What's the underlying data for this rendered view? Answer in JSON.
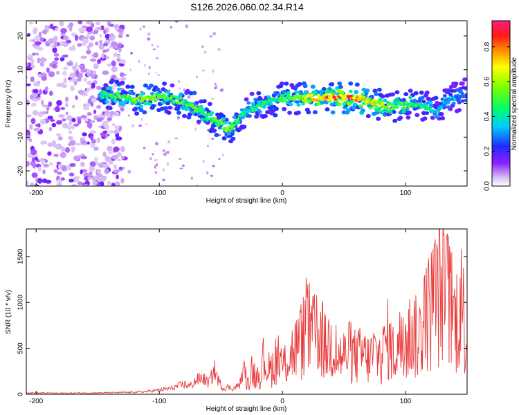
{
  "title": "S126.2026.060.02.34.R14",
  "chart_data": [
    {
      "type": "heatmap",
      "xlabel": "Height of straight line (km)",
      "ylabel": "Frequency (Hz)",
      "xlim": [
        -208,
        150
      ],
      "ylim": [
        -24.5,
        24.5
      ],
      "xticks": [
        -200,
        -100,
        0,
        100
      ],
      "yticks": [
        -20,
        -10,
        0,
        10,
        20
      ],
      "ridge": {
        "x": [
          -148,
          -140,
          -130,
          -120,
          -110,
          -100,
          -90,
          -80,
          -70,
          -60,
          -50,
          -45,
          -40,
          -30,
          -20,
          -10,
          0,
          10,
          20,
          30,
          40,
          50,
          60,
          70,
          80,
          90,
          100,
          110,
          120,
          125,
          130,
          140,
          150
        ],
        "y": [
          2.5,
          2.5,
          1.8,
          1.2,
          1.5,
          2.0,
          1.5,
          0.5,
          -1.5,
          -4.0,
          -6.0,
          -7.5,
          -6.5,
          -2.5,
          -0.5,
          0.5,
          1.5,
          1.5,
          1.5,
          1.8,
          1.8,
          1.8,
          1.5,
          0.5,
          -0.5,
          -1.0,
          -0.5,
          0.0,
          -1.0,
          -3.0,
          0.0,
          2.0,
          3.0
        ],
        "peak_amplitude": [
          0.45,
          0.55,
          0.6,
          0.65,
          0.7,
          0.6,
          0.55,
          0.55,
          0.6,
          0.55,
          0.6,
          0.65,
          0.55,
          0.45,
          0.5,
          0.5,
          0.55,
          0.6,
          0.7,
          0.85,
          0.9,
          0.9,
          0.9,
          0.8,
          0.7,
          0.6,
          0.55,
          0.5,
          0.45,
          0.4,
          0.4,
          0.35,
          0.3
        ]
      },
      "colorbar": {
        "label": "Normalized spectral amplitude",
        "ticks": [
          "0.0",
          "0.2",
          "0.4",
          "0.6",
          "0.8"
        ],
        "range": [
          0,
          0.95
        ]
      }
    },
    {
      "type": "line",
      "xlabel": "Height of straight line (km)",
      "ylabel": "SNR (10 * v/v)",
      "xlim": [
        -208,
        150
      ],
      "ylim": [
        0,
        1800
      ],
      "xticks": [
        -200,
        -100,
        0,
        100
      ],
      "yticks": [
        0,
        500,
        1000,
        1500
      ],
      "series": [
        {
          "name": "SNR",
          "color": "#e83a3a",
          "x": [
            -208,
            -180,
            -150,
            -125,
            -110,
            -100,
            -90,
            -80,
            -75,
            -70,
            -65,
            -60,
            -55,
            -52,
            -48,
            -45,
            -40,
            -35,
            -30,
            -28,
            -25,
            -20,
            -15,
            -10,
            -5,
            0,
            5,
            10,
            15,
            20,
            25,
            30,
            35,
            40,
            45,
            50,
            55,
            60,
            65,
            70,
            75,
            80,
            85,
            90,
            95,
            100,
            105,
            110,
            115,
            120,
            125,
            130,
            135,
            140,
            145,
            150
          ],
          "values": [
            15,
            12,
            15,
            20,
            30,
            45,
            65,
            110,
            90,
            150,
            180,
            120,
            260,
            150,
            60,
            80,
            60,
            100,
            320,
            200,
            430,
            250,
            560,
            380,
            620,
            450,
            620,
            760,
            850,
            1150,
            950,
            1060,
            760,
            880,
            620,
            640,
            700,
            620,
            670,
            580,
            700,
            560,
            940,
            680,
            860,
            700,
            1120,
            860,
            1200,
            1420,
            1650,
            1780,
            1560,
            1200,
            1560,
            950
          ]
        }
      ]
    }
  ]
}
